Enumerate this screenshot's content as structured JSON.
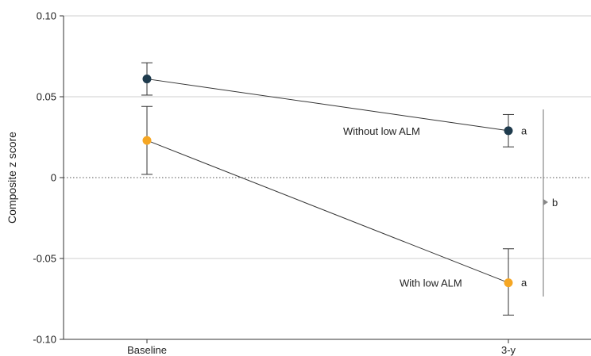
{
  "chart_data": {
    "type": "line",
    "title": "",
    "xlabel": "",
    "ylabel": "Composite z score",
    "categories": [
      "Baseline",
      "3-y"
    ],
    "ylim": [
      -0.1,
      0.1
    ],
    "yticks": [
      "0.10",
      "0.05",
      "0",
      "-0.05",
      "-0.10"
    ],
    "ytick_values": [
      0.1,
      0.05,
      0,
      -0.05,
      -0.1
    ],
    "grid": true,
    "reference_line": 0,
    "series": [
      {
        "name": "Without low ALM",
        "color": "#1f3b4d",
        "values": [
          0.061,
          0.029
        ],
        "ci_low": [
          0.051,
          0.019
        ],
        "ci_high": [
          0.071,
          0.039
        ],
        "end_note": "a"
      },
      {
        "name": "With low ALM",
        "color": "#f5a623",
        "values": [
          0.023,
          -0.065
        ],
        "ci_low": [
          0.002,
          -0.085
        ],
        "ci_high": [
          0.044,
          -0.044
        ],
        "end_note": "a"
      }
    ],
    "bracket_note": "b"
  }
}
